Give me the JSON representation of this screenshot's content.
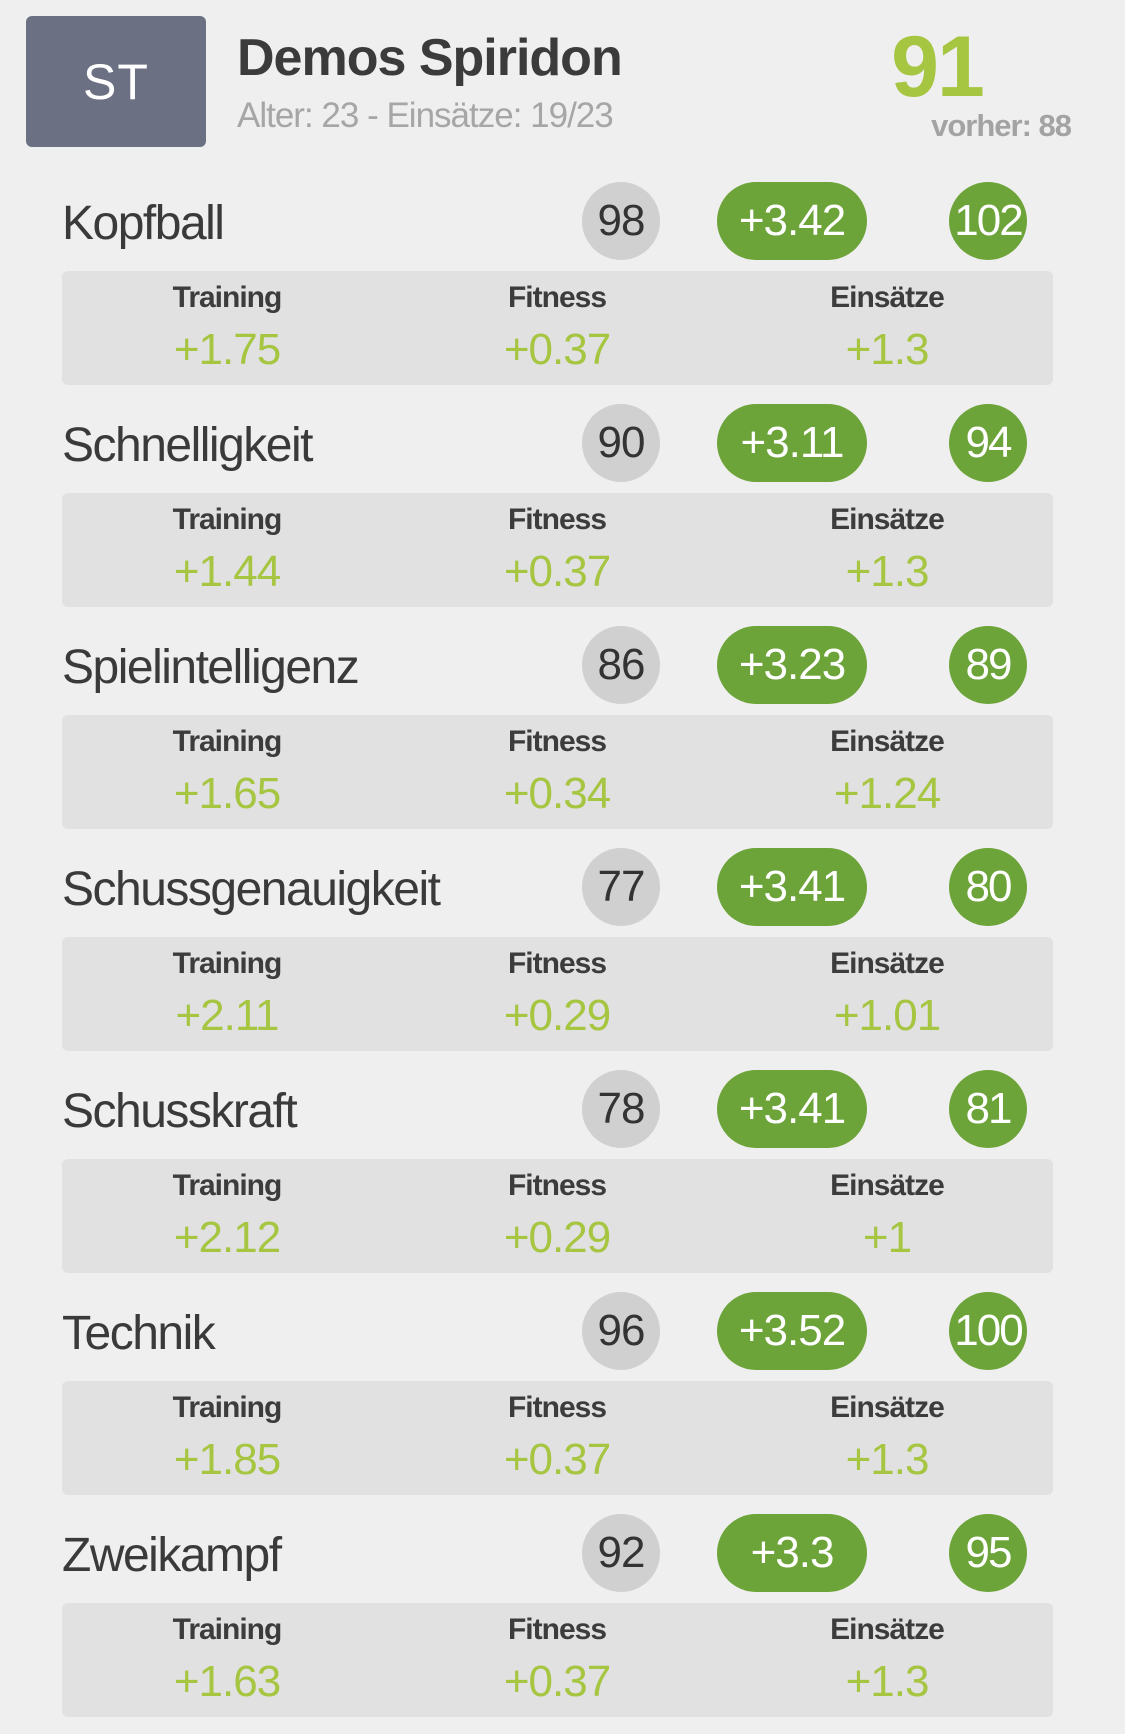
{
  "player": {
    "position": "ST",
    "name": "Demos Spiridon",
    "meta": "Alter: 23 - Einsätze: 19/23",
    "overall": "91",
    "previous": "vorher: 88"
  },
  "detail_labels": {
    "training": "Training",
    "fitness": "Fitness",
    "appearances": "Einsätze"
  },
  "attributes": [
    {
      "name": "Kopfball",
      "base": "98",
      "delta": "+3.42",
      "new": "102",
      "training": "+1.75",
      "fitness": "+0.37",
      "appearances": "+1.3"
    },
    {
      "name": "Schnelligkeit",
      "base": "90",
      "delta": "+3.11",
      "new": "94",
      "training": "+1.44",
      "fitness": "+0.37",
      "appearances": "+1.3"
    },
    {
      "name": "Spielintelligenz",
      "base": "86",
      "delta": "+3.23",
      "new": "89",
      "training": "+1.65",
      "fitness": "+0.34",
      "appearances": "+1.24"
    },
    {
      "name": "Schussgenauigkeit",
      "base": "77",
      "delta": "+3.41",
      "new": "80",
      "training": "+2.11",
      "fitness": "+0.29",
      "appearances": "+1.01"
    },
    {
      "name": "Schusskraft",
      "base": "78",
      "delta": "+3.41",
      "new": "81",
      "training": "+2.12",
      "fitness": "+0.29",
      "appearances": "+1"
    },
    {
      "name": "Technik",
      "base": "96",
      "delta": "+3.52",
      "new": "100",
      "training": "+1.85",
      "fitness": "+0.37",
      "appearances": "+1.3"
    },
    {
      "name": "Zweikampf",
      "base": "92",
      "delta": "+3.3",
      "new": "95",
      "training": "+1.63",
      "fitness": "+0.37",
      "appearances": "+1.3"
    }
  ],
  "colors": {
    "position_box": "#6b7183",
    "accent_green": "#6da43a",
    "value_green": "#a6c541",
    "base_grey": "#d0d0d0",
    "background": "#efefef",
    "detail_bg": "#e1e1e1"
  }
}
